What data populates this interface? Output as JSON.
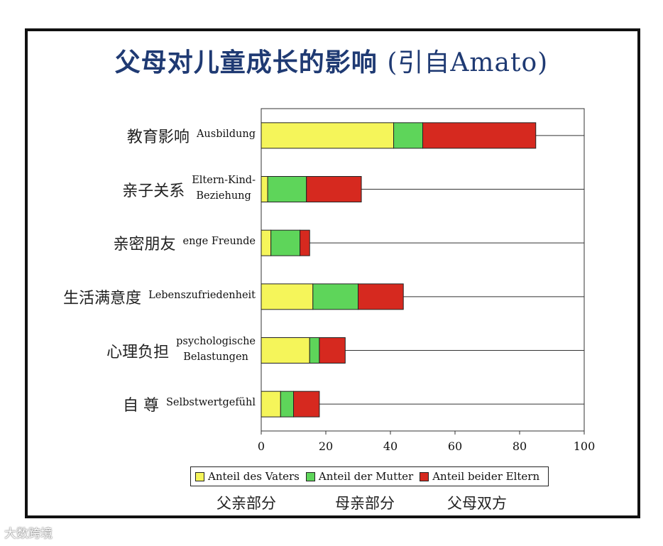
{
  "title": {
    "zh": "父母对儿童成长的影响",
    "en": "(引自Amato)"
  },
  "colors": {
    "father": "#f5f55a",
    "mother": "#5ed55a",
    "both": "#d6291f"
  },
  "categories": [
    {
      "zh": "教育影响",
      "de": [
        "Ausbildung"
      ]
    },
    {
      "zh": "亲子关系",
      "de": [
        "Eltern-Kind-",
        "Beziehung"
      ]
    },
    {
      "zh": "亲密朋友",
      "de": [
        "enge Freunde"
      ]
    },
    {
      "zh": "生活满意度",
      "de": [
        "Lebenszufriedenheit"
      ]
    },
    {
      "zh": "心理负担",
      "de": [
        "psychologische",
        "Belastungen"
      ]
    },
    {
      "zh": "自 尊",
      "de": [
        "Selbstwertgefühl"
      ]
    }
  ],
  "legend": {
    "father": "Anteil des Vaters",
    "mother": "Anteil der Mutter",
    "both": "Anteil beider Eltern",
    "father_zh": "父亲部分",
    "mother_zh": "母亲部分",
    "both_zh": "父母双方"
  },
  "watermark": "大数跨境",
  "chart_data": {
    "type": "bar",
    "orientation": "horizontal",
    "stacked": true,
    "title": "父母对儿童成长的影响 (引自Amato)",
    "categories": [
      "Ausbildung",
      "Eltern-Kind-Beziehung",
      "enge Freunde",
      "Lebenszufriedenheit",
      "psychologische Belastungen",
      "Selbstwertgefühl"
    ],
    "series": [
      {
        "name": "Anteil des Vaters",
        "values": [
          41,
          2,
          3,
          16,
          15,
          6
        ]
      },
      {
        "name": "Anteil der Mutter",
        "values": [
          9,
          12,
          9,
          14,
          3,
          4
        ]
      },
      {
        "name": "Anteil beider Eltern",
        "values": [
          35,
          17,
          3,
          14,
          8,
          8
        ]
      }
    ],
    "xlim": [
      0,
      100
    ],
    "xticks": [
      0,
      20,
      40,
      60,
      80,
      100
    ],
    "grid": true,
    "legend_position": "bottom"
  }
}
